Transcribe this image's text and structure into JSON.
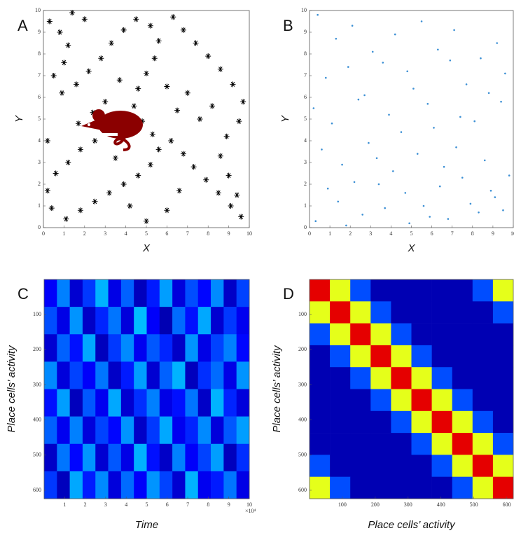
{
  "chart_data": [
    {
      "type": "scatter",
      "letter": "A",
      "marker": "star",
      "color": "#000000",
      "x_label": "X",
      "y_label": "Y",
      "x": [
        0.3,
        0.8,
        1.2,
        1.0,
        0.5,
        0.9,
        1.6,
        2.2,
        2.8,
        3.3,
        3.9,
        4.5,
        5.2,
        5.6,
        5.4,
        5.0,
        4.6,
        4.4,
        4.8,
        5.3,
        5.6,
        5.2,
        4.6,
        3.9,
        3.2,
        2.5,
        1.8,
        1.1,
        0.4,
        0.2,
        0.6,
        1.2,
        1.8,
        2.5,
        6.2,
        6.8,
        7.3,
        7.9,
        8.5,
        9.1,
        9.6,
        9.4,
        9.0,
        8.6,
        8.9,
        9.5,
        9.7,
        9.2,
        8.6,
        8.0,
        7.4,
        6.8,
        6.3,
        7.0,
        6.5,
        6.0,
        3.0,
        2.4,
        1.7,
        0.2,
        3.5,
        4.2,
        5.0,
        6.0,
        6.6,
        7.6,
        8.2,
        2.0,
        1.4,
        3.7
      ],
      "y": [
        9.5,
        9.0,
        8.4,
        7.6,
        7.0,
        6.2,
        6.6,
        7.2,
        7.8,
        8.5,
        9.1,
        9.6,
        9.3,
        8.6,
        7.8,
        7.1,
        6.4,
        5.6,
        4.9,
        4.3,
        3.6,
        2.9,
        2.4,
        2.0,
        1.6,
        1.2,
        0.8,
        0.4,
        0.9,
        1.7,
        2.5,
        3.0,
        3.6,
        4.0,
        4.0,
        3.4,
        2.8,
        2.2,
        1.6,
        1.0,
        0.5,
        1.5,
        2.4,
        3.3,
        4.2,
        4.9,
        5.8,
        6.6,
        7.3,
        7.9,
        8.5,
        9.1,
        9.7,
        6.2,
        5.4,
        6.5,
        5.8,
        5.3,
        4.8,
        4.0,
        3.2,
        1.0,
        0.3,
        0.8,
        1.7,
        5.0,
        5.6,
        9.6,
        9.9,
        6.8
      ],
      "xlim": [
        0,
        10
      ],
      "ylim": [
        0,
        10
      ],
      "xticks": [
        0,
        1,
        2,
        3,
        4,
        5,
        6,
        7,
        8,
        9,
        10
      ],
      "yticks": [
        0,
        1,
        2,
        3,
        4,
        5,
        6,
        7,
        8,
        9,
        10
      ]
    },
    {
      "type": "scatter",
      "letter": "B",
      "marker": "dot",
      "color": "#3b8fd4",
      "x_label": "X",
      "y_label": "Y",
      "x": [
        0.4,
        1.3,
        2.1,
        3.6,
        4.2,
        5.5,
        6.3,
        7.1,
        8.4,
        9.2,
        0.8,
        1.9,
        2.7,
        3.1,
        4.8,
        5.1,
        6.9,
        7.7,
        8.8,
        9.6,
        0.2,
        1.1,
        2.4,
        3.9,
        4.5,
        5.8,
        6.1,
        7.4,
        8.1,
        9.4,
        0.6,
        1.6,
        2.9,
        3.3,
        4.1,
        5.3,
        6.6,
        7.2,
        8.6,
        9.8,
        0.9,
        1.4,
        2.2,
        3.7,
        4.7,
        5.9,
        6.4,
        7.9,
        8.3,
        9.1,
        0.3,
        1.8,
        2.6,
        3.4,
        4.9,
        5.6,
        6.8,
        7.5,
        8.9,
        9.5
      ],
      "y": [
        9.8,
        8.7,
        9.3,
        7.6,
        8.9,
        9.5,
        8.2,
        9.1,
        7.8,
        8.5,
        6.9,
        7.4,
        6.1,
        8.1,
        7.2,
        6.4,
        7.7,
        6.6,
        6.2,
        7.1,
        5.5,
        4.8,
        5.9,
        5.2,
        4.4,
        5.7,
        4.6,
        5.1,
        4.9,
        5.8,
        3.6,
        2.9,
        3.9,
        3.2,
        2.6,
        3.4,
        2.8,
        3.7,
        3.1,
        2.4,
        1.8,
        1.2,
        2.1,
        0.9,
        1.6,
        0.5,
        1.9,
        1.1,
        0.7,
        1.4,
        0.3,
        0.1,
        0.6,
        2.0,
        0.2,
        1.0,
        0.4,
        2.3,
        1.7,
        0.8
      ],
      "xlim": [
        0,
        10
      ],
      "ylim": [
        0,
        10
      ],
      "xticks": [
        0,
        1,
        2,
        3,
        4,
        5,
        6,
        7,
        8,
        9,
        10
      ],
      "yticks": [
        0,
        1,
        2,
        3,
        4,
        5,
        6,
        7,
        8,
        9,
        10
      ]
    },
    {
      "type": "heatmap",
      "letter": "C",
      "colormap": "jet",
      "x_label": "Time",
      "y_label": "Place cells’ activity",
      "x_multiplier": "×10⁴",
      "matrix": [
        [
          0.12,
          0.25,
          0.08,
          0.18,
          0.3,
          0.1,
          0.22,
          0.06,
          0.15,
          0.28,
          0.09,
          0.2,
          0.13,
          0.26,
          0.07,
          0.19
        ],
        [
          0.2,
          0.1,
          0.27,
          0.07,
          0.16,
          0.24,
          0.09,
          0.31,
          0.12,
          0.05,
          0.23,
          0.14,
          0.29,
          0.08,
          0.18,
          0.11
        ],
        [
          0.08,
          0.22,
          0.14,
          0.29,
          0.06,
          0.18,
          0.26,
          0.11,
          0.21,
          0.16,
          0.07,
          0.27,
          0.1,
          0.19,
          0.25,
          0.13
        ],
        [
          0.26,
          0.09,
          0.19,
          0.12,
          0.24,
          0.07,
          0.15,
          0.28,
          0.08,
          0.22,
          0.3,
          0.06,
          0.17,
          0.23,
          0.1,
          0.27
        ],
        [
          0.14,
          0.28,
          0.06,
          0.21,
          0.11,
          0.29,
          0.08,
          0.17,
          0.25,
          0.1,
          0.14,
          0.24,
          0.07,
          0.3,
          0.16,
          0.09
        ],
        [
          0.22,
          0.11,
          0.25,
          0.09,
          0.19,
          0.13,
          0.27,
          0.07,
          0.18,
          0.29,
          0.11,
          0.16,
          0.26,
          0.09,
          0.21,
          0.28
        ],
        [
          0.07,
          0.24,
          0.13,
          0.27,
          0.08,
          0.21,
          0.1,
          0.3,
          0.14,
          0.07,
          0.25,
          0.12,
          0.19,
          0.28,
          0.06,
          0.17
        ],
        [
          0.18,
          0.06,
          0.29,
          0.15,
          0.26,
          0.09,
          0.23,
          0.12,
          0.27,
          0.19,
          0.08,
          0.3,
          0.11,
          0.15,
          0.24,
          0.1
        ]
      ],
      "xlim": [
        0,
        10
      ],
      "ylim": [
        624,
        0
      ],
      "xticks": [
        1,
        2,
        3,
        4,
        5,
        6,
        7,
        8,
        9,
        10
      ],
      "yticks": [
        100,
        200,
        300,
        400,
        500,
        600
      ]
    },
    {
      "type": "heatmap",
      "letter": "D",
      "colormap": "jet",
      "x_label": "Place cells’ activity",
      "y_label": "Place cells’ activity",
      "matrix": [
        [
          0.9,
          0.6,
          0.2,
          0.05,
          0.05,
          0.05,
          0.05,
          0.05,
          0.2,
          0.6
        ],
        [
          0.6,
          0.9,
          0.6,
          0.2,
          0.05,
          0.05,
          0.05,
          0.05,
          0.05,
          0.2
        ],
        [
          0.2,
          0.6,
          0.9,
          0.6,
          0.2,
          0.05,
          0.05,
          0.05,
          0.05,
          0.05
        ],
        [
          0.05,
          0.2,
          0.6,
          0.9,
          0.6,
          0.2,
          0.05,
          0.05,
          0.05,
          0.05
        ],
        [
          0.05,
          0.05,
          0.2,
          0.6,
          0.9,
          0.6,
          0.2,
          0.05,
          0.05,
          0.05
        ],
        [
          0.05,
          0.05,
          0.05,
          0.2,
          0.6,
          0.9,
          0.6,
          0.2,
          0.05,
          0.05
        ],
        [
          0.05,
          0.05,
          0.05,
          0.05,
          0.2,
          0.6,
          0.9,
          0.6,
          0.2,
          0.05
        ],
        [
          0.05,
          0.05,
          0.05,
          0.05,
          0.05,
          0.2,
          0.6,
          0.9,
          0.6,
          0.2
        ],
        [
          0.2,
          0.05,
          0.05,
          0.05,
          0.05,
          0.05,
          0.2,
          0.6,
          0.9,
          0.6
        ],
        [
          0.6,
          0.2,
          0.05,
          0.05,
          0.05,
          0.05,
          0.05,
          0.2,
          0.6,
          0.9
        ]
      ],
      "xlim": [
        0,
        620
      ],
      "ylim": [
        624,
        0
      ],
      "xticks": [
        100,
        200,
        300,
        400,
        500,
        600
      ],
      "yticks": [
        100,
        200,
        300,
        400,
        500,
        600
      ]
    }
  ]
}
